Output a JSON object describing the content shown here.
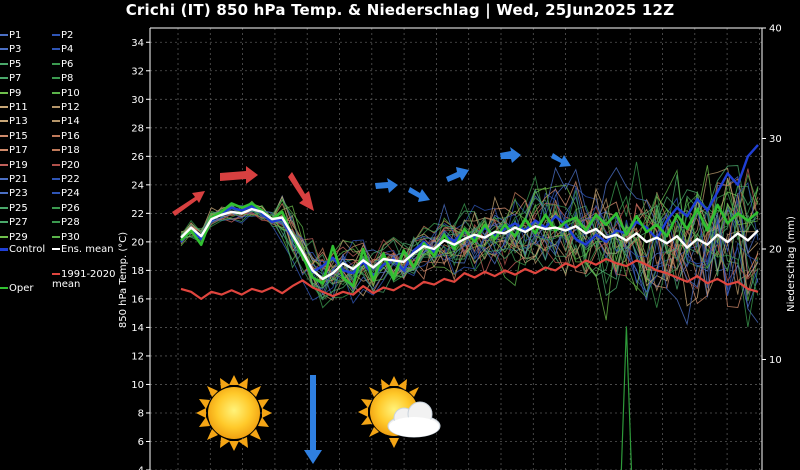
{
  "chart_data": {
    "type": "line",
    "title": "Crichi  (IT)  850 hPa Temp. & Niederschlag | Wed, 25Jun2025 12Z",
    "ylabel_left": "850 hPa Temp. (°C)",
    "ylabel_right": "Niederschlag (mm)",
    "ylim_left": [
      4,
      35
    ],
    "yticks_left": [
      "4",
      "6",
      "8",
      "10",
      "12",
      "14",
      "16",
      "18",
      "20",
      "22",
      "24",
      "26",
      "28",
      "30",
      "32",
      "34"
    ],
    "ylim_right": [
      0,
      40
    ],
    "yticks_right": [
      "10",
      "20",
      "30",
      "40"
    ],
    "grid": true,
    "legend_position": "left",
    "legend": [
      {
        "label": "P1",
        "color": "#4b6fc4"
      },
      {
        "label": "P2",
        "color": "#2f55b5"
      },
      {
        "label": "P3",
        "color": "#4b6fc4"
      },
      {
        "label": "P4",
        "color": "#2f55b5"
      },
      {
        "label": "P5",
        "color": "#4aa86a"
      },
      {
        "label": "P6",
        "color": "#3b9a4f"
      },
      {
        "label": "P7",
        "color": "#4aa86a"
      },
      {
        "label": "P8",
        "color": "#3b9a4f"
      },
      {
        "label": "P9",
        "color": "#6fbf4c"
      },
      {
        "label": "P10",
        "color": "#5ab34a"
      },
      {
        "label": "P11",
        "color": "#c9a777"
      },
      {
        "label": "P12",
        "color": "#b5966a"
      },
      {
        "label": "P13",
        "color": "#c9a777"
      },
      {
        "label": "P14",
        "color": "#b5966a"
      },
      {
        "label": "P15",
        "color": "#d08a6a"
      },
      {
        "label": "P16",
        "color": "#c07a5a"
      },
      {
        "label": "P17",
        "color": "#d08a6a"
      },
      {
        "label": "P18",
        "color": "#c07a5a"
      },
      {
        "label": "P19",
        "color": "#c0605a"
      },
      {
        "label": "P20",
        "color": "#b0504a"
      },
      {
        "label": "P21",
        "color": "#4b6fc4"
      },
      {
        "label": "P22",
        "color": "#2f55b5"
      },
      {
        "label": "P23",
        "color": "#4b6fc4"
      },
      {
        "label": "P24",
        "color": "#2f55b5"
      },
      {
        "label": "P25",
        "color": "#4aa86a"
      },
      {
        "label": "P26",
        "color": "#3b9a4f"
      },
      {
        "label": "P27",
        "color": "#4aa86a"
      },
      {
        "label": "P28",
        "color": "#3b9a4f"
      },
      {
        "label": "P29",
        "color": "#6fbf4c"
      },
      {
        "label": "P30",
        "color": "#5ab34a"
      },
      {
        "label": "Control",
        "color": "#1f3fd6"
      },
      {
        "label": "Ens. mean",
        "color": "#ffffff"
      },
      {
        "label": "1991-2020 mean",
        "color": "#e0453e"
      },
      {
        "label": "Oper",
        "color": "#31c031"
      }
    ],
    "steps": 58,
    "series": [
      {
        "name": "Ens. mean",
        "color": "#ffffff",
        "values": [
          20.3,
          21.0,
          20.4,
          21.6,
          21.9,
          22.1,
          22.0,
          22.3,
          22.1,
          21.6,
          21.7,
          20.5,
          19.3,
          18.0,
          17.4,
          17.8,
          18.5,
          18.1,
          18.7,
          18.2,
          18.8,
          18.7,
          18.6,
          19.2,
          19.7,
          19.5,
          20.1,
          19.8,
          20.2,
          20.5,
          20.3,
          20.7,
          20.6,
          21.0,
          20.7,
          21.1,
          20.9,
          21.0,
          20.8,
          21.1,
          20.6,
          20.9,
          20.3,
          20.5,
          20.1,
          20.6,
          20.0,
          20.3,
          19.9,
          20.4,
          19.6,
          20.2,
          19.8,
          20.5,
          20.0,
          20.6,
          20.1,
          20.8
        ]
      },
      {
        "name": "Oper",
        "color": "#31c031",
        "values": [
          20.1,
          20.8,
          19.8,
          21.7,
          22.1,
          22.7,
          22.4,
          22.7,
          22.2,
          21.6,
          22.1,
          20.4,
          19.0,
          17.5,
          17.1,
          19.7,
          17.5,
          16.9,
          19.5,
          17.3,
          19.2,
          17.4,
          19.4,
          18.2,
          19.9,
          19.0,
          20.5,
          19.5,
          20.9,
          20.0,
          21.2,
          20.2,
          21.2,
          20.4,
          21.6,
          20.6,
          21.9,
          20.8,
          21.4,
          21.7,
          20.8,
          21.9,
          21.2,
          22.0,
          20.5,
          21.8,
          20.7,
          21.2,
          20.4,
          21.9,
          20.9,
          22.3,
          20.8,
          22.6,
          21.3,
          22.0,
          21.5,
          22.1
        ]
      },
      {
        "name": "Control",
        "color": "#1f3fd6",
        "values": [
          20.0,
          20.9,
          20.2,
          21.5,
          22.0,
          22.4,
          22.2,
          22.5,
          22.0,
          21.4,
          21.6,
          20.3,
          19.0,
          17.9,
          18.3,
          18.9,
          18.0,
          17.8,
          18.6,
          17.6,
          18.4,
          18.8,
          18.0,
          19.4,
          20.0,
          19.3,
          20.5,
          20.0,
          20.8,
          20.2,
          21.0,
          20.4,
          20.9,
          21.3,
          20.8,
          21.5,
          21.0,
          21.8,
          21.2,
          20.2,
          19.8,
          20.5,
          20.0,
          20.8,
          20.6,
          21.4,
          21.0,
          20.2,
          21.5,
          22.4,
          21.8,
          23.0,
          22.2,
          23.5,
          24.8,
          24.0,
          26.0,
          26.8
        ]
      },
      {
        "name": "1991-2020 mean",
        "color": "#e0453e",
        "values": [
          16.7,
          16.5,
          16.0,
          16.5,
          16.3,
          16.6,
          16.3,
          16.7,
          16.5,
          16.8,
          16.4,
          16.9,
          17.3,
          16.8,
          16.5,
          16.2,
          16.5,
          16.3,
          16.9,
          16.4,
          16.8,
          16.6,
          17.0,
          16.7,
          17.2,
          17.0,
          17.4,
          17.2,
          17.8,
          17.5,
          17.9,
          17.6,
          18.0,
          17.7,
          18.1,
          17.8,
          18.2,
          18.0,
          18.5,
          18.2,
          18.7,
          18.4,
          18.8,
          18.5,
          18.3,
          18.7,
          18.4,
          18.0,
          17.8,
          17.5,
          17.2,
          17.6,
          17.1,
          17.4,
          17.0,
          17.2,
          16.7,
          16.5
        ]
      }
    ],
    "precip_spike": {
      "step": 44,
      "value": 13
    }
  }
}
